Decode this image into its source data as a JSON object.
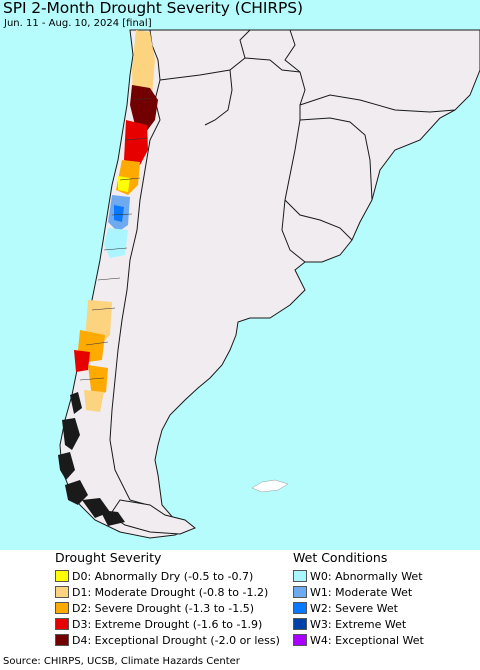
{
  "map": {
    "title": "SPI 2-Month Drought Severity (CHIRPS)",
    "subtitle": "Jun. 11 - Aug. 10, 2024 [final]",
    "ocean_color": "#b7fcfc",
    "land_color": "#f0ecef",
    "border_color": "#1a1a1a"
  },
  "legend": {
    "drought_heading": "Drought Severity",
    "drought_items": [
      {
        "label": "D0: Abnormally Dry (-0.5 to -0.7)",
        "color": "#ffff00"
      },
      {
        "label": "D1: Moderate Drought (-0.8 to -1.2)",
        "color": "#fcd37f"
      },
      {
        "label": "D2: Severe Drought (-1.3 to -1.5)",
        "color": "#ffaa00"
      },
      {
        "label": "D3: Extreme Drought (-1.6 to -1.9)",
        "color": "#e60000"
      },
      {
        "label": "D4: Exceptional Drought (-2.0 or less)",
        "color": "#730000"
      }
    ],
    "wet_heading": "Wet Conditions",
    "wet_items": [
      {
        "label": "W0: Abnormally Wet",
        "color": "#aaf5ff"
      },
      {
        "label": "W1: Moderate Wet",
        "color": "#6eaaf0"
      },
      {
        "label": "W2: Severe Wet",
        "color": "#0a78ff"
      },
      {
        "label": "W3: Extreme Wet",
        "color": "#0041aa"
      },
      {
        "label": "W4: Exceptional Wet",
        "color": "#aa00ff"
      }
    ]
  },
  "footer": {
    "source": "Source: CHIRPS, UCSB, Climate Hazards Center"
  }
}
